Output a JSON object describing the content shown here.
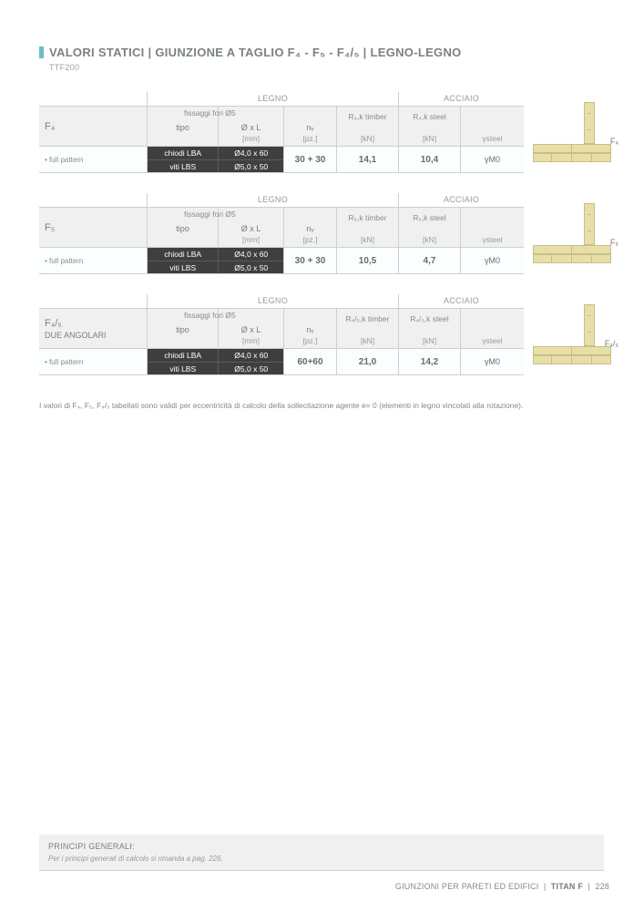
{
  "header": {
    "title": "VALORI STATICI | GIUNZIONE A TAGLIO F₄ - F₅ - F₄/₅ | LEGNO-LEGNO",
    "subtitle": "TTF200",
    "accent_color": "#6bbfc4"
  },
  "sections": [
    {
      "label": "F₄",
      "sub_label": "",
      "diagram_label": "F₄",
      "group_timber": "LEGNO",
      "group_steel": "ACCIAIO",
      "fissaggi": "fissaggi fori Ø5",
      "columns": {
        "tipo": "tipo",
        "ox": "Ø x L",
        "ox_u": "[mm]",
        "nv": "nᵥ",
        "nv_u": "[pz.]",
        "rt": "R₄,k timber",
        "rt_u": "[kN]",
        "rs": "R₄,k steel",
        "rs_u": "[kN]",
        "y": "γsteel"
      },
      "pattern": "• full pattern",
      "row1": {
        "tipo": "chiodi LBA",
        "ox": "Ø4,0 x 60"
      },
      "row2": {
        "tipo": "viti LBS",
        "ox": "Ø5,0 x 50"
      },
      "nv": "30 + 30",
      "kn_t": "14,1",
      "kn_s": "10,4",
      "y": "γM0"
    },
    {
      "label": "F₅",
      "sub_label": "",
      "diagram_label": "F₅",
      "group_timber": "LEGNO",
      "group_steel": "ACCIAIO",
      "fissaggi": "fissaggi fori Ø5",
      "columns": {
        "tipo": "tipo",
        "ox": "Ø x L",
        "ox_u": "[mm]",
        "nv": "nᵥ",
        "nv_u": "[pz.]",
        "rt": "R₅,k timber",
        "rt_u": "[kN]",
        "rs": "R₅,k steel",
        "rs_u": "[kN]",
        "y": "γsteel"
      },
      "pattern": "• full pattern",
      "row1": {
        "tipo": "chiodi LBA",
        "ox": "Ø4,0 x 60"
      },
      "row2": {
        "tipo": "viti LBS",
        "ox": "Ø5,0 x 50"
      },
      "nv": "30 + 30",
      "kn_t": "10,5",
      "kn_s": "4,7",
      "y": "γM0"
    },
    {
      "label": "F₄/₅",
      "sub_label": "DUE ANGOLARI",
      "diagram_label": "F₄/₅",
      "group_timber": "LEGNO",
      "group_steel": "ACCIAIO",
      "fissaggi": "fissaggi fori Ø5",
      "columns": {
        "tipo": "tipo",
        "ox": "Ø x L",
        "ox_u": "[mm]",
        "nv": "nᵥ",
        "nv_u": "[pz.]",
        "rt": "R₄/₅,k timber",
        "rt_u": "[kN]",
        "rs": "R₄/₅,k steel",
        "rs_u": "[kN]",
        "y": "γsteel"
      },
      "pattern": "• full pattern",
      "row1": {
        "tipo": "chiodi LBA",
        "ox": "Ø4,0 x 60"
      },
      "row2": {
        "tipo": "viti LBS",
        "ox": "Ø5,0 x 50"
      },
      "nv": "60+60",
      "kn_t": "21,0",
      "kn_s": "14,2",
      "y": "γM0"
    }
  ],
  "note": "I valori di F₄, F₅, F₄/₅ tabellati sono validi per eccentricità di calcolo della sollecitazione agente e= 0 (elementi in legno vincolati alla rotazione).",
  "footer_box": {
    "heading": "PRINCIPI GENERALI:",
    "text": "Per i principi generali di calcolo si rimanda a pag. 226."
  },
  "page_footer": {
    "left": "GIUNZIONI PER PARETI ED EDIFICI",
    "mid": "TITAN F",
    "page": "228"
  },
  "colors": {
    "dark_cell": "#3f3f3f",
    "beam": "#e8dfa8",
    "beam_border": "#c8be88",
    "grey_bg": "#f0f0f0"
  }
}
